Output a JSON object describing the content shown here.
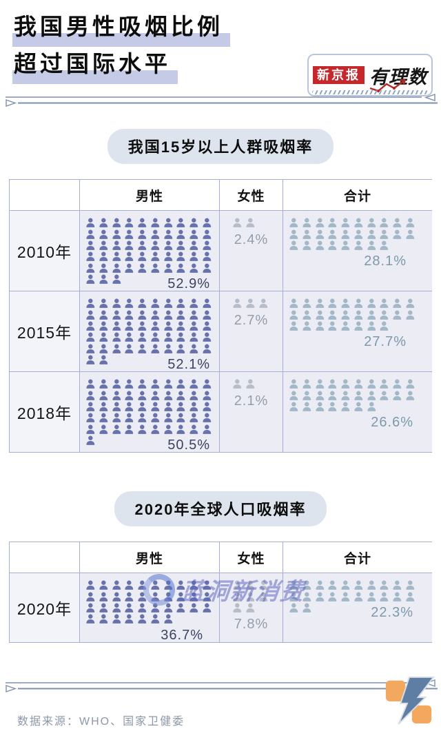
{
  "header": {
    "title_line1": "我国男性吸烟比例",
    "title_line2": "超过国际水平",
    "brand_badge": "新京报",
    "brand_script": "有理数"
  },
  "sections": [
    {
      "title": "我国15岁以上人群吸烟率"
    },
    {
      "title": "2020年全球人口吸烟率"
    }
  ],
  "table_columns": {
    "male": "男性",
    "female": "女性",
    "total": "合计"
  },
  "watermark": {
    "text": "蓝洞新消费"
  },
  "footer": {
    "source": "数据来源：WHO、国家卫健委"
  },
  "colors": {
    "male_icon": "#6772ac",
    "male_label": "#3b4360",
    "female_icon": "#b6bdc9",
    "female_label": "#959dab",
    "total_icon": "#a2b7c7",
    "total_label": "#7e98ac",
    "table_border": "#a7aed6",
    "cell_bg": "#ebecf4",
    "title_highlight": "#c5cbe6",
    "brand_red": "#c5282c",
    "pill_bg": "#dde4ed",
    "divider": "#7c8fae",
    "logo_orange": "#f2a85f",
    "logo_blue": "#5e7ea4"
  },
  "pictogram_config": {
    "male": {
      "per_row": 10
    },
    "female": {
      "per_row": 3
    },
    "total": {
      "per_row": 10
    }
  },
  "chart_data": [
    {
      "type": "pictogram-table",
      "title": "我国15岁以上人群吸烟率",
      "unit": "%",
      "note": "one person icon ≈ 1 percentage point",
      "columns": [
        "男性",
        "女性",
        "合计"
      ],
      "rows": [
        {
          "year": "2010年",
          "male": {
            "value": 52.9,
            "label": "52.9%",
            "label_pos": "inline-right"
          },
          "female": {
            "value": 2.4,
            "label": "2.4%",
            "label_pos": "below-center"
          },
          "total": {
            "value": 28.1,
            "label": "28.1%",
            "label_pos": "below-right"
          }
        },
        {
          "year": "2015年",
          "male": {
            "value": 52.1,
            "label": "52.1%",
            "label_pos": "inline-right"
          },
          "female": {
            "value": 2.7,
            "label": "2.7%",
            "label_pos": "below-center"
          },
          "total": {
            "value": 27.7,
            "label": "27.7%",
            "label_pos": "below-right"
          }
        },
        {
          "year": "2018年",
          "male": {
            "value": 50.5,
            "label": "50.5%",
            "label_pos": "inline-right"
          },
          "female": {
            "value": 2.1,
            "label": "2.1%",
            "label_pos": "below-center"
          },
          "total": {
            "value": 26.6,
            "label": "26.6%",
            "label_pos": "inline-right"
          }
        }
      ]
    },
    {
      "type": "pictogram-table",
      "title": "2020年全球人口吸烟率",
      "unit": "%",
      "note": "one person icon ≈ 1 percentage point",
      "columns": [
        "男性",
        "女性",
        "合计"
      ],
      "rows": [
        {
          "year": "2020年",
          "male": {
            "value": 36.7,
            "label": "36.7%",
            "label_pos": "below-right"
          },
          "female": {
            "value": 7.8,
            "label": "7.8%",
            "label_pos": "below-center"
          },
          "total": {
            "value": 22.3,
            "label": "22.3%",
            "label_pos": "inline-right"
          }
        }
      ]
    }
  ]
}
